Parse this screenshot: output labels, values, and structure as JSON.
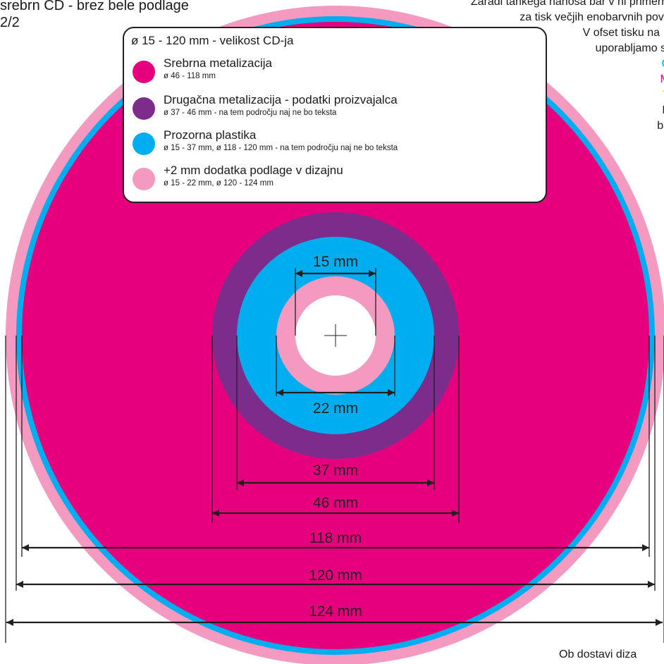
{
  "header": {
    "title": "srebrn CD - brez bele podlage",
    "page": "2/2"
  },
  "top_note": {
    "line1": "Zaradi tankega nanosa bar v ni primerna",
    "line2": "za tisk večjih enobarvnih povrn",
    "line3": "V ofset tisku na",
    "line4": "uporabljamo sa",
    "cmyk_c": "C",
    "cmyk_m": "M",
    "cmyk_y": "Y",
    "cmyk_k": "K",
    "cmyk_suffix": " ba"
  },
  "legend": {
    "title": "ø 15 - 120 mm - velikost CD-ja",
    "items": [
      {
        "label": "Srebrna metalizacija",
        "sub": "ø 46 - 118 mm",
        "color": "#e6007e"
      },
      {
        "label": "Drugačna metalizacija - podatki proizvajalca",
        "sub": "ø 37 -  46 mm - na tem področju naj ne bo teksta",
        "color": "#7c2d8c"
      },
      {
        "label": "Prozorna plastika",
        "sub": "ø 15 - 37 mm, ø 118 - 120 mm - na tem področju naj ne bo teksta",
        "color": "#00aeef"
      },
      {
        "label": "+2 mm dodatka podlage v dizajnu",
        "sub": "ø 15 - 22 mm, ø 120 - 124 mm",
        "color": "#f49ac1"
      }
    ]
  },
  "dimensions": {
    "d15": "15 mm",
    "d22": "22 mm",
    "d37": "37 mm",
    "d46": "46 mm",
    "d118": "118 mm",
    "d120": "120 mm",
    "d124": "124 mm"
  },
  "bottom_note": "Ob dostavi diza",
  "colors": {
    "silver_metallization": "#e6007e",
    "other_metallization": "#7c2d8c",
    "clear_plastic": "#00aeef",
    "bleed": "#f49ac1",
    "hole": "#ffffff"
  }
}
